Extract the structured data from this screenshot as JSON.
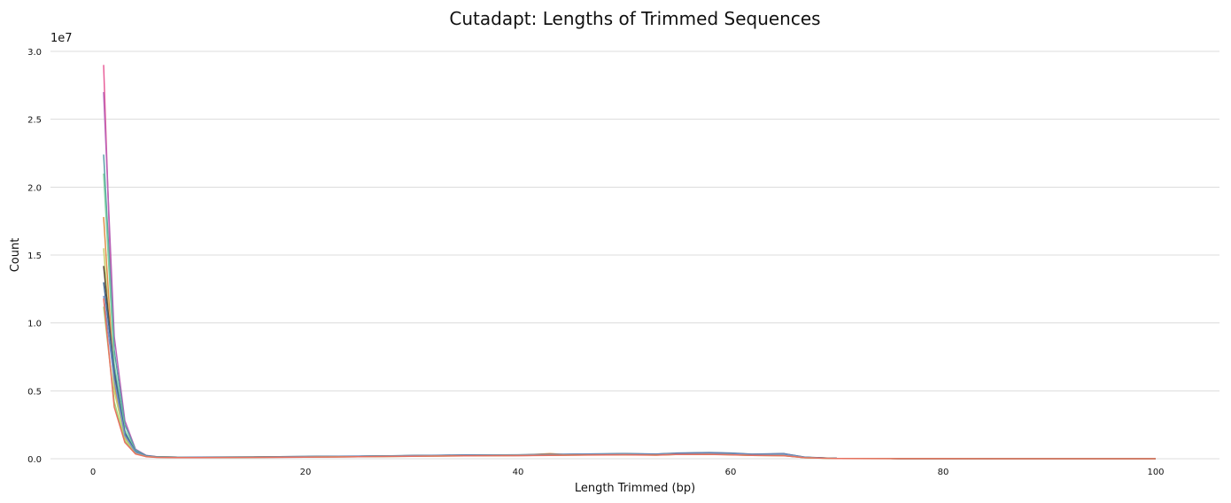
{
  "chart_data": {
    "type": "line",
    "title": "Cutadapt: Lengths of Trimmed Sequences",
    "xlabel": "Length Trimmed (bp)",
    "ylabel": "Count",
    "y_scale_label": "1e7",
    "xlim": [
      -4,
      106
    ],
    "ylim": [
      0,
      30000000
    ],
    "x_ticks": [
      0,
      20,
      40,
      60,
      80,
      100
    ],
    "x_tick_labels": [
      "0",
      "20",
      "40",
      "60",
      "80",
      "100"
    ],
    "y_ticks": [
      0,
      5000000,
      10000000,
      15000000,
      20000000,
      25000000,
      30000000
    ],
    "y_tick_labels": [
      "0.0",
      "0.5",
      "1.0",
      "1.5",
      "2.0",
      "2.5",
      "3.0"
    ],
    "grid": "horizontal",
    "legend": "none",
    "x": [
      1,
      2,
      3,
      4,
      5,
      6,
      8,
      10,
      15,
      20,
      25,
      30,
      35,
      40,
      43,
      45,
      50,
      53,
      55,
      58,
      60,
      62,
      65,
      67,
      70,
      75,
      80,
      85,
      90,
      95,
      100
    ],
    "series": [
      {
        "color": "#e8609a",
        "values": [
          29000000,
          6000000,
          1500000,
          400000,
          180000,
          120000,
          100000,
          90000,
          100000,
          120000,
          150000,
          200000,
          220000,
          230000,
          260000,
          270000,
          300000,
          280000,
          320000,
          330000,
          300000,
          260000,
          240000,
          80000,
          20000,
          10000,
          5000,
          3000,
          2000,
          1000,
          500
        ]
      },
      {
        "color": "#b863b8",
        "values": [
          27000000,
          9000000,
          2800000,
          700000,
          250000,
          150000,
          120000,
          110000,
          120000,
          150000,
          180000,
          220000,
          250000,
          260000,
          280000,
          300000,
          330000,
          300000,
          360000,
          380000,
          350000,
          290000,
          270000,
          90000,
          25000,
          12000,
          6000,
          3000,
          2000,
          1000,
          500
        ]
      },
      {
        "color": "#5aa0a8",
        "values": [
          22400000,
          8000000,
          2500000,
          650000,
          230000,
          140000,
          120000,
          110000,
          130000,
          160000,
          190000,
          230000,
          260000,
          280000,
          290000,
          320000,
          350000,
          320000,
          380000,
          400000,
          370000,
          300000,
          290000,
          95000,
          25000,
          12000,
          6000,
          3000,
          2000,
          1000,
          500
        ]
      },
      {
        "color": "#7fd0a0",
        "values": [
          21000000,
          7000000,
          2100000,
          550000,
          210000,
          130000,
          110000,
          100000,
          120000,
          150000,
          180000,
          220000,
          250000,
          270000,
          280000,
          300000,
          330000,
          300000,
          360000,
          370000,
          340000,
          280000,
          260000,
          85000,
          22000,
          11000,
          5000,
          3000,
          2000,
          1000,
          500
        ]
      },
      {
        "color": "#e0904a",
        "values": [
          17800000,
          5500000,
          1600000,
          450000,
          180000,
          120000,
          100000,
          95000,
          110000,
          140000,
          160000,
          200000,
          230000,
          250000,
          380000,
          280000,
          310000,
          280000,
          330000,
          340000,
          310000,
          260000,
          240000,
          80000,
          20000,
          10000,
          5000,
          3000,
          2000,
          1000,
          500
        ]
      },
      {
        "color": "#c8d070",
        "values": [
          15500000,
          5000000,
          1500000,
          420000,
          170000,
          110000,
          95000,
          90000,
          105000,
          130000,
          150000,
          190000,
          220000,
          240000,
          260000,
          270000,
          300000,
          270000,
          320000,
          330000,
          300000,
          250000,
          230000,
          75000,
          20000,
          10000,
          5000,
          3000,
          2000,
          1000,
          500
        ]
      },
      {
        "color": "#5a4a3a",
        "values": [
          14200000,
          6200000,
          1800000,
          500000,
          200000,
          130000,
          110000,
          100000,
          120000,
          150000,
          180000,
          220000,
          260000,
          280000,
          300000,
          320000,
          360000,
          330000,
          400000,
          430000,
          400000,
          320000,
          360000,
          100000,
          25000,
          12000,
          6000,
          3000,
          2000,
          1000,
          500
        ]
      },
      {
        "color": "#3e6890",
        "values": [
          13000000,
          6500000,
          1900000,
          520000,
          210000,
          140000,
          120000,
          110000,
          130000,
          160000,
          190000,
          230000,
          270000,
          290000,
          310000,
          330000,
          370000,
          340000,
          420000,
          450000,
          420000,
          330000,
          370000,
          110000,
          25000,
          12000,
          6000,
          3000,
          2000,
          1000,
          500
        ]
      },
      {
        "color": "#7890c8",
        "values": [
          12000000,
          5800000,
          1700000,
          480000,
          190000,
          125000,
          105000,
          100000,
          115000,
          145000,
          175000,
          215000,
          250000,
          270000,
          290000,
          310000,
          340000,
          310000,
          380000,
          400000,
          370000,
          300000,
          330000,
          95000,
          22000,
          11000,
          5000,
          3000,
          2000,
          1000,
          500
        ]
      },
      {
        "color": "#a0d878",
        "values": [
          11200000,
          4200000,
          1300000,
          380000,
          160000,
          105000,
          90000,
          85000,
          100000,
          125000,
          150000,
          185000,
          215000,
          235000,
          255000,
          265000,
          295000,
          265000,
          315000,
          325000,
          295000,
          245000,
          225000,
          72000,
          19000,
          9000,
          4500,
          2500,
          1500,
          800,
          400
        ]
      },
      {
        "color": "#e87060",
        "values": [
          11800000,
          3800000,
          1200000,
          350000,
          150000,
          100000,
          85000,
          80000,
          95000,
          120000,
          145000,
          180000,
          210000,
          230000,
          250000,
          260000,
          290000,
          260000,
          310000,
          320000,
          290000,
          240000,
          220000,
          70000,
          18000,
          9000,
          4500,
          2500,
          1500,
          800,
          400
        ]
      }
    ]
  }
}
